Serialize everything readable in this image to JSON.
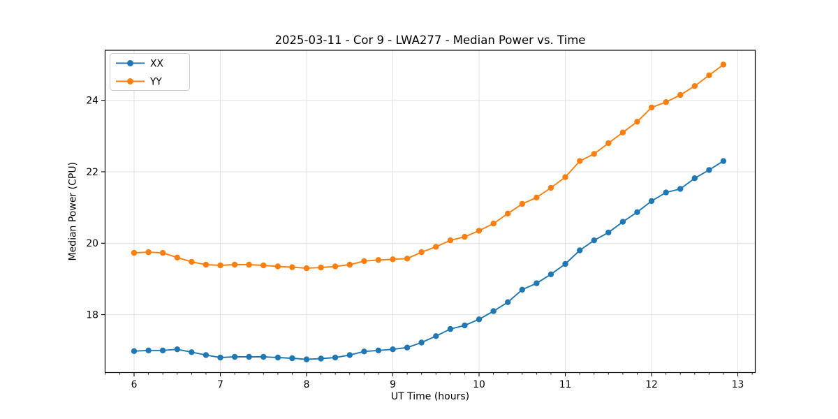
{
  "chart_data": {
    "type": "line",
    "title": "2025-03-11 - Cor 9 - LWA277 - Median Power vs. Time",
    "xlabel": "UT Time (hours)",
    "ylabel": "Median Power (CPU)",
    "xlim": [
      5.664,
      13.202
    ],
    "ylim": [
      16.38,
      25.4
    ],
    "xticks": [
      6,
      7,
      8,
      9,
      10,
      11,
      12,
      13
    ],
    "yticks": [
      18,
      20,
      22,
      24
    ],
    "x_minor_per_major": 6,
    "grid": true,
    "legend_position": "upper-left",
    "marker": "circle",
    "x": [
      6.0,
      6.167,
      6.333,
      6.5,
      6.667,
      6.833,
      7.0,
      7.167,
      7.333,
      7.5,
      7.667,
      7.833,
      8.0,
      8.167,
      8.333,
      8.5,
      8.667,
      8.833,
      9.0,
      9.167,
      9.333,
      9.5,
      9.667,
      9.833,
      10.0,
      10.167,
      10.333,
      10.5,
      10.667,
      10.833,
      11.0,
      11.167,
      11.333,
      11.5,
      11.667,
      11.833,
      12.0,
      12.167,
      12.333,
      12.5,
      12.667,
      12.833
    ],
    "series": [
      {
        "name": "XX",
        "color": "#1f77b4",
        "values": [
          16.98,
          17.0,
          17.0,
          17.03,
          16.95,
          16.87,
          16.8,
          16.82,
          16.82,
          16.82,
          16.8,
          16.78,
          16.75,
          16.77,
          16.8,
          16.87,
          16.97,
          17.0,
          17.03,
          17.08,
          17.22,
          17.4,
          17.6,
          17.7,
          17.87,
          18.1,
          18.35,
          18.7,
          18.88,
          19.13,
          19.42,
          19.8,
          20.08,
          20.3,
          20.6,
          20.87,
          21.18,
          21.42,
          21.52,
          21.82,
          22.05,
          22.3
        ]
      },
      {
        "name": "YY",
        "color": "#ff7f0e",
        "values": [
          19.73,
          19.75,
          19.73,
          19.6,
          19.48,
          19.4,
          19.38,
          19.4,
          19.4,
          19.38,
          19.35,
          19.33,
          19.3,
          19.32,
          19.35,
          19.4,
          19.5,
          19.53,
          19.55,
          19.57,
          19.75,
          19.9,
          20.08,
          20.18,
          20.35,
          20.55,
          20.83,
          21.1,
          21.28,
          21.55,
          21.85,
          22.3,
          22.5,
          22.8,
          23.1,
          23.4,
          23.8,
          23.95,
          24.15,
          24.4,
          24.7,
          25.0
        ]
      }
    ],
    "colors": {
      "grid": "#e2e2e2",
      "spine": "#000000",
      "legend_border": "#cccccc",
      "legend_bg": "#ffffff"
    }
  }
}
